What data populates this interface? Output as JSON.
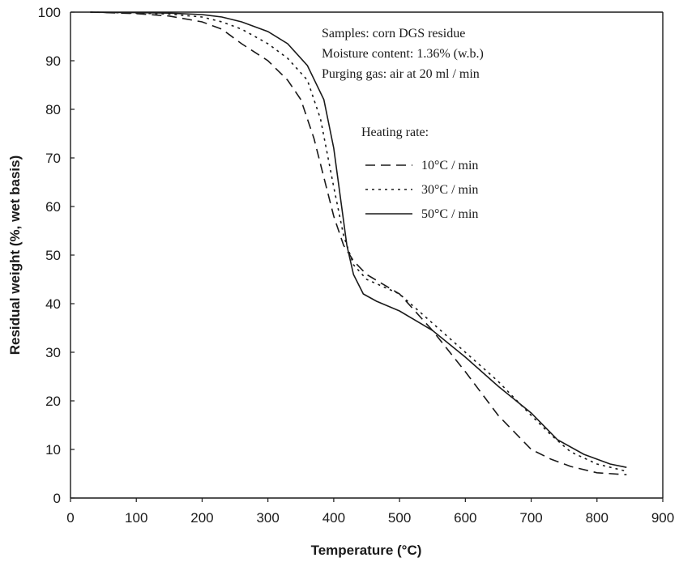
{
  "chart_data": {
    "type": "line",
    "title": "",
    "xlabel": "Temperature (°C)",
    "ylabel": "Residual weight (%, wet basis)",
    "xlim": [
      0,
      900
    ],
    "ylim": [
      0,
      100
    ],
    "xticks": [
      0,
      100,
      200,
      300,
      400,
      500,
      600,
      700,
      800,
      900
    ],
    "yticks": [
      0,
      10,
      20,
      30,
      40,
      50,
      60,
      70,
      80,
      90,
      100
    ],
    "grid": false,
    "annotations": [
      "Samples: corn DGS residue",
      "Moisture content: 1.36% (w.b.)",
      "Purging gas: air at 20 ml / min"
    ],
    "legend": {
      "title": "Heating rate:",
      "placement": "upper-right",
      "entries": [
        {
          "label": "10°C / min",
          "style": "dashed"
        },
        {
          "label": "30°C / min",
          "style": "dotted"
        },
        {
          "label": "50°C / min",
          "style": "solid"
        }
      ]
    },
    "series": [
      {
        "name": "10°C / min",
        "style": "dashed",
        "points": [
          [
            30,
            100
          ],
          [
            100,
            99.7
          ],
          [
            150,
            99.2
          ],
          [
            200,
            98
          ],
          [
            230,
            96.5
          ],
          [
            260,
            93.5
          ],
          [
            300,
            90
          ],
          [
            330,
            86
          ],
          [
            350,
            82
          ],
          [
            370,
            74
          ],
          [
            385,
            66
          ],
          [
            400,
            58
          ],
          [
            415,
            52
          ],
          [
            430,
            48.8
          ],
          [
            450,
            46
          ],
          [
            500,
            42
          ],
          [
            550,
            34.5
          ],
          [
            600,
            26
          ],
          [
            650,
            17
          ],
          [
            700,
            10
          ],
          [
            730,
            8
          ],
          [
            760,
            6.5
          ],
          [
            800,
            5.2
          ],
          [
            845,
            4.8
          ]
        ]
      },
      {
        "name": "30°C / min",
        "style": "dotted",
        "points": [
          [
            30,
            100
          ],
          [
            100,
            99.8
          ],
          [
            150,
            99.6
          ],
          [
            200,
            99
          ],
          [
            230,
            98
          ],
          [
            260,
            96.5
          ],
          [
            300,
            93.5
          ],
          [
            330,
            90.5
          ],
          [
            360,
            86
          ],
          [
            380,
            78
          ],
          [
            400,
            64
          ],
          [
            415,
            54
          ],
          [
            430,
            48
          ],
          [
            450,
            45
          ],
          [
            500,
            42
          ],
          [
            550,
            36
          ],
          [
            600,
            30
          ],
          [
            650,
            24
          ],
          [
            700,
            17
          ],
          [
            730,
            13
          ],
          [
            760,
            9.5
          ],
          [
            800,
            7
          ],
          [
            845,
            5.5
          ]
        ]
      },
      {
        "name": "50°C / min",
        "style": "solid",
        "points": [
          [
            30,
            100
          ],
          [
            100,
            99.9
          ],
          [
            150,
            99.8
          ],
          [
            200,
            99.5
          ],
          [
            230,
            99
          ],
          [
            260,
            98
          ],
          [
            300,
            96
          ],
          [
            330,
            93.5
          ],
          [
            360,
            89
          ],
          [
            385,
            82
          ],
          [
            400,
            72
          ],
          [
            410,
            62
          ],
          [
            420,
            52
          ],
          [
            430,
            46
          ],
          [
            445,
            42
          ],
          [
            465,
            40.5
          ],
          [
            500,
            38.5
          ],
          [
            550,
            34.5
          ],
          [
            600,
            29
          ],
          [
            650,
            23
          ],
          [
            700,
            17.5
          ],
          [
            740,
            12
          ],
          [
            780,
            9
          ],
          [
            820,
            7
          ],
          [
            845,
            6.3
          ]
        ]
      }
    ]
  }
}
